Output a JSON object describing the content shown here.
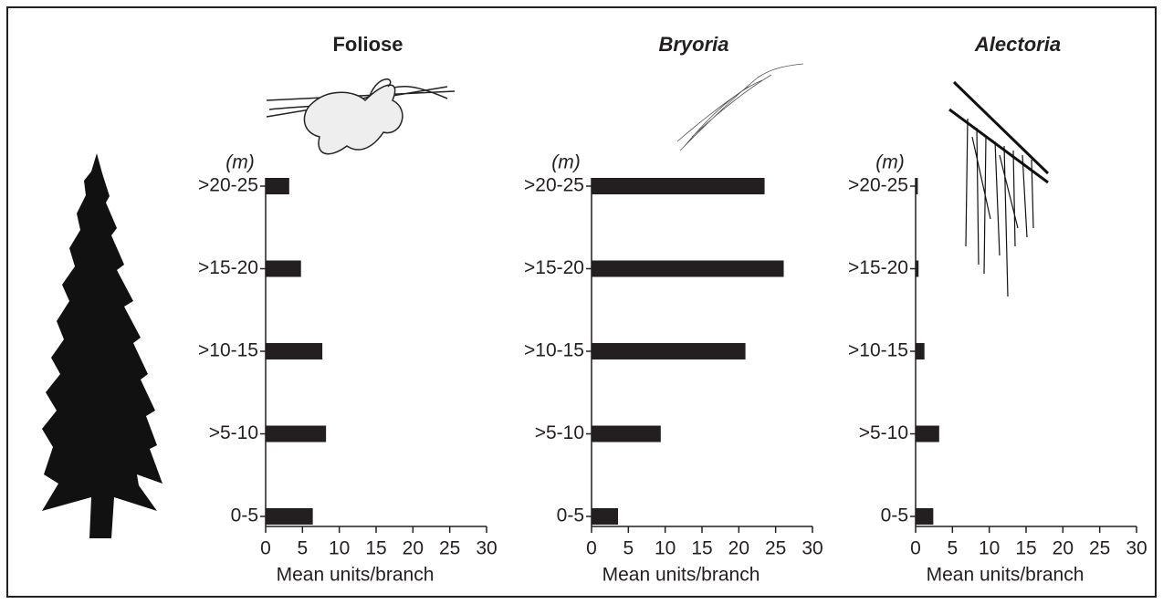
{
  "chart_data": [
    {
      "type": "hbar",
      "title": "Foliose",
      "title_italic": false,
      "ylabel": "(m)",
      "xlabel": "Mean units/branch",
      "categories": [
        "0-5",
        ">5-10",
        ">10-15",
        ">15-20",
        ">20-25"
      ],
      "values": [
        6.4,
        8.2,
        7.7,
        4.8,
        3.2
      ],
      "color": "#231f20",
      "xlim": [
        0,
        30
      ],
      "xticks": [
        0,
        5,
        10,
        15,
        20,
        25,
        30
      ]
    },
    {
      "type": "hbar",
      "title": "Bryoria",
      "title_italic": true,
      "ylabel": "(m)",
      "xlabel": "Mean units/branch",
      "categories": [
        "0-5",
        ">5-10",
        ">10-15",
        ">15-20",
        ">20-25"
      ],
      "values": [
        3.6,
        9.4,
        20.9,
        26.1,
        23.5
      ],
      "color": "#231f20",
      "xlim": [
        0,
        30
      ],
      "xticks": [
        0,
        5,
        10,
        15,
        20,
        25,
        30
      ]
    },
    {
      "type": "hbar",
      "title": "Alectoria",
      "title_italic": true,
      "ylabel": "(m)",
      "xlabel": "Mean units/branch",
      "categories": [
        "0-5",
        ">5-10",
        ">10-15",
        ">15-20",
        ">20-25"
      ],
      "values": [
        2.4,
        3.2,
        1.2,
        0.4,
        0.3
      ],
      "color": "#231f20",
      "xlim": [
        0,
        30
      ],
      "xticks": [
        0,
        5,
        10,
        15,
        20,
        25,
        30
      ]
    }
  ]
}
